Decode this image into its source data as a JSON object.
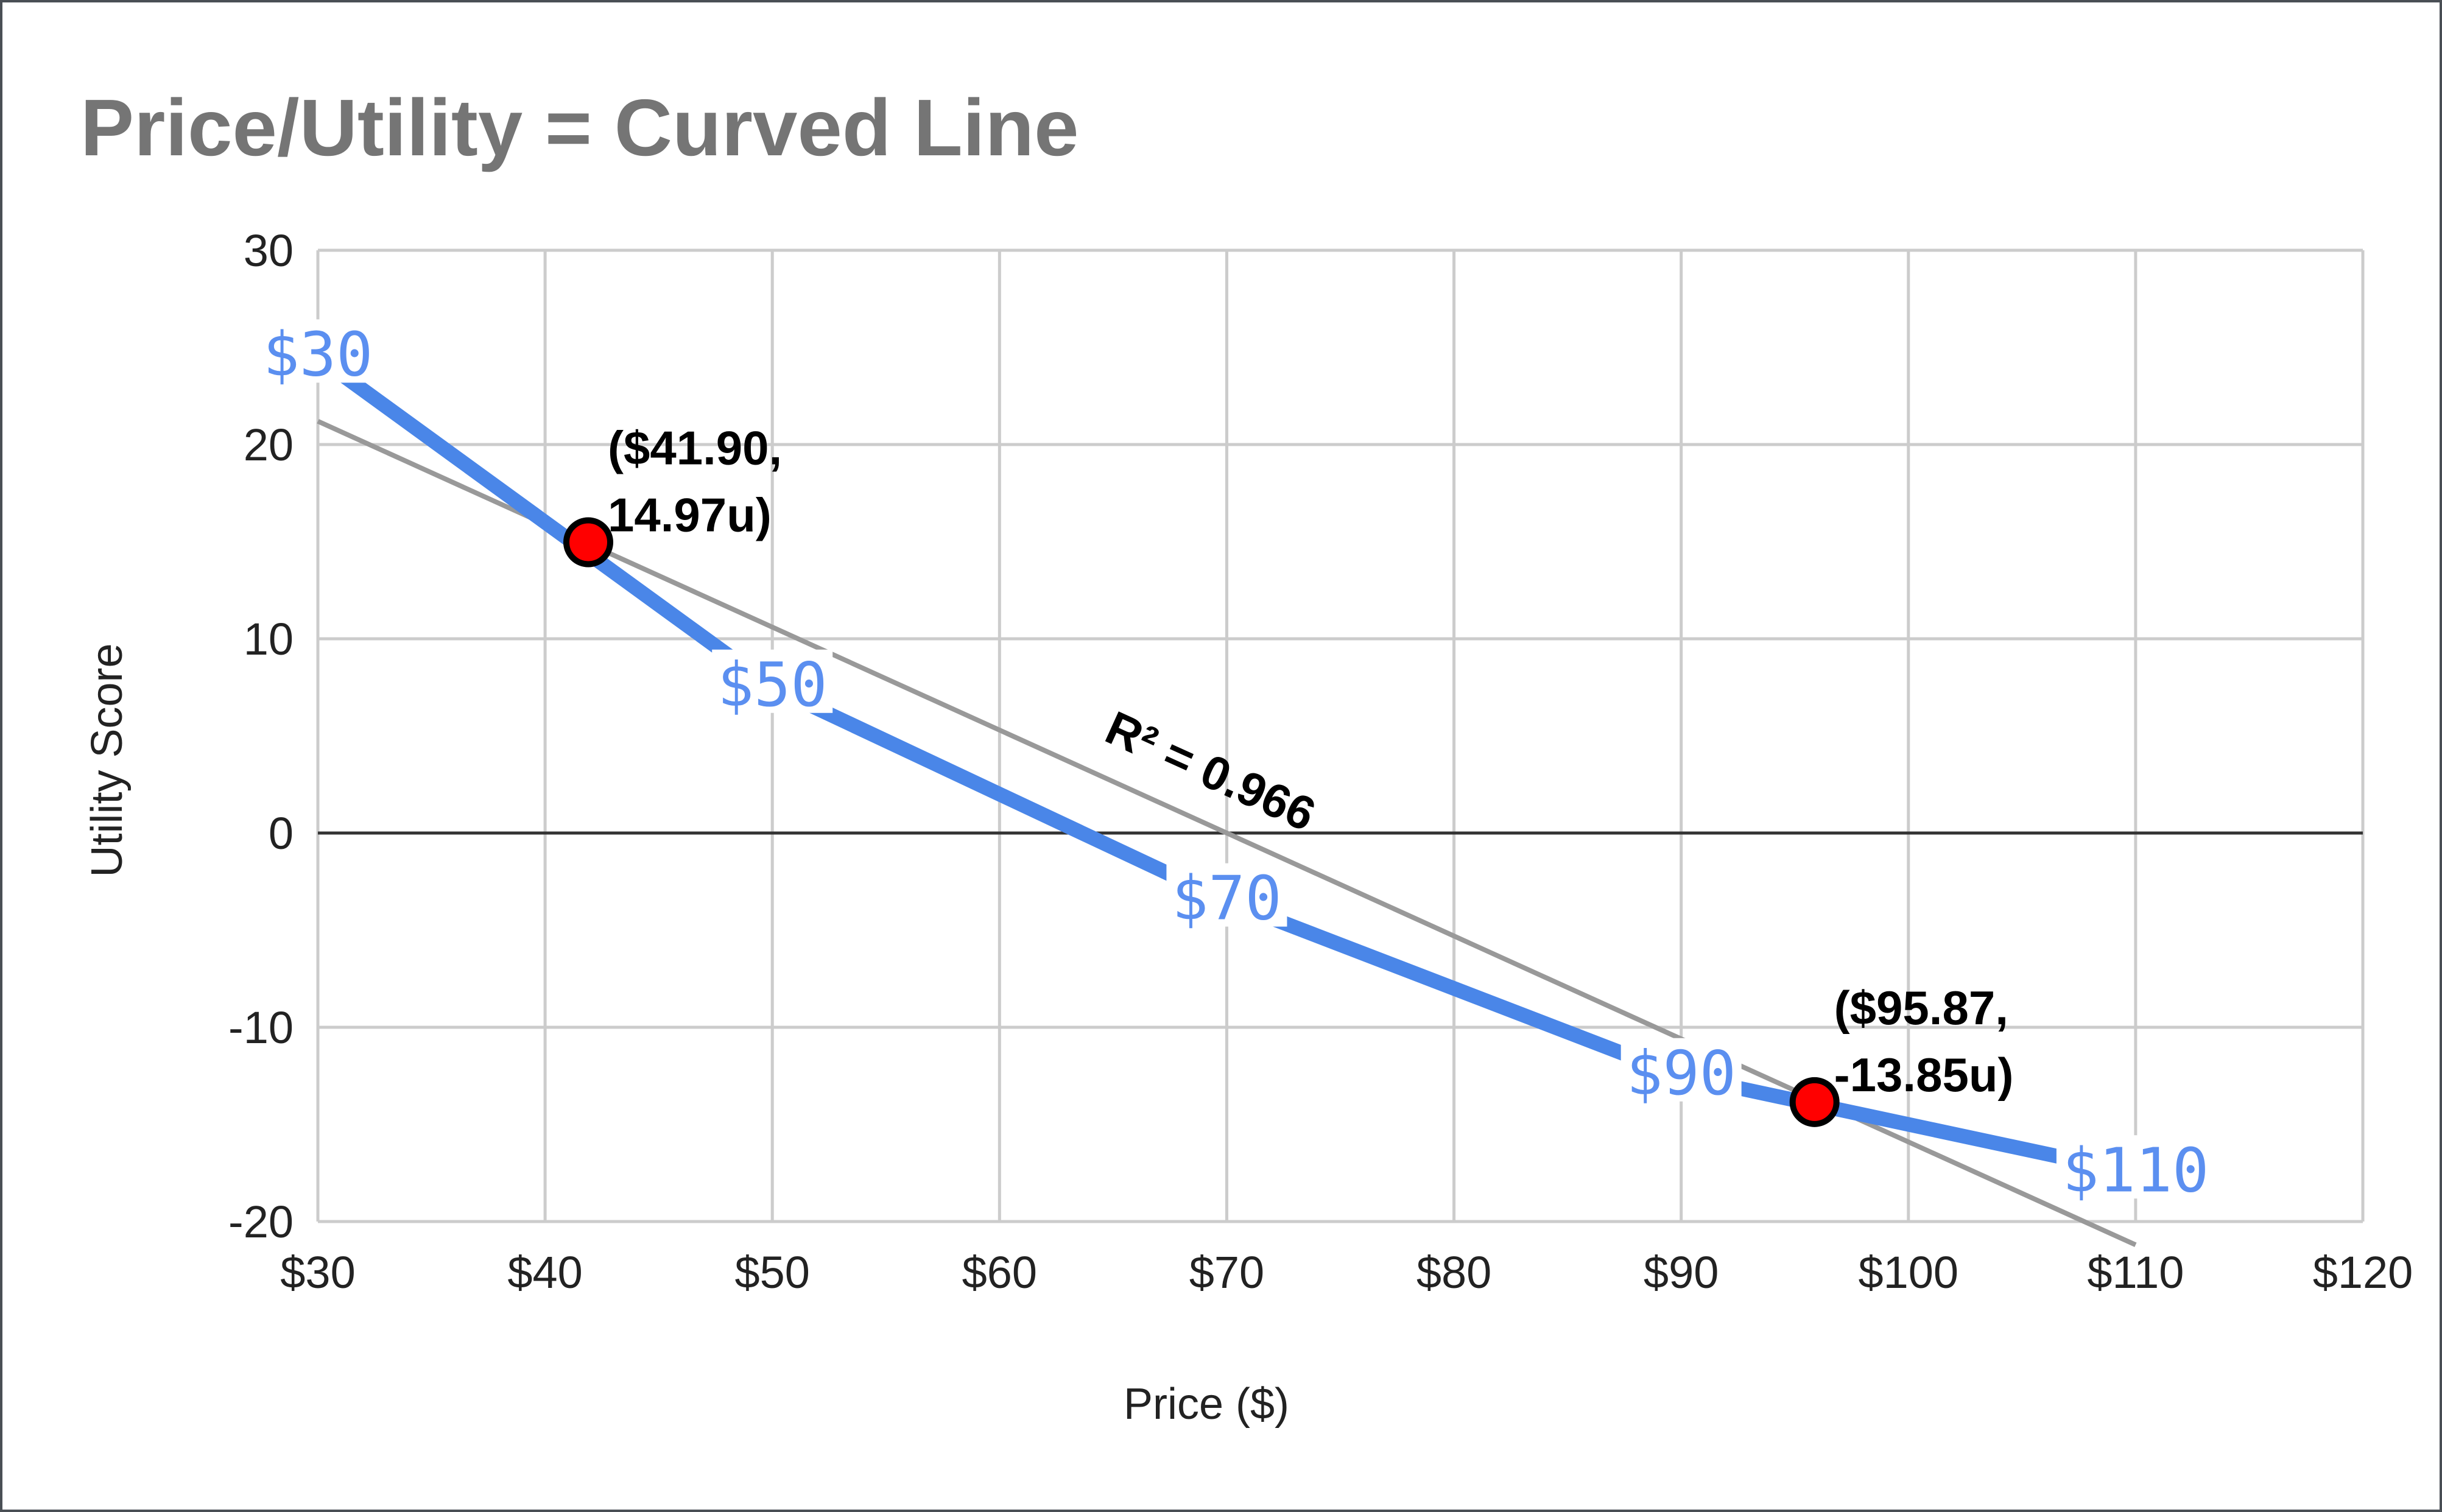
{
  "chart_data": {
    "type": "line",
    "title": "Price/Utility = Curved Line",
    "xlabel": "Price ($)",
    "ylabel": "Utility Score",
    "xlim": [
      30,
      120
    ],
    "ylim": [
      -20,
      30
    ],
    "x_ticks": [
      30,
      40,
      50,
      60,
      70,
      80,
      90,
      100,
      110,
      120
    ],
    "x_tick_labels": [
      "$30",
      "$40",
      "$50",
      "$60",
      "$70",
      "$80",
      "$90",
      "$100",
      "$110",
      "$120"
    ],
    "y_ticks": [
      30,
      20,
      10,
      0,
      -10,
      -20
    ],
    "y_tick_labels": [
      "30",
      "20",
      "10",
      "0",
      "-10",
      "-20"
    ],
    "grid": true,
    "series": [
      {
        "color": "#4a86e8",
        "x": [
          30,
          50,
          70,
          90,
          110
        ],
        "y": [
          24.5,
          7.5,
          -3.5,
          -12.5,
          -17.5
        ],
        "point_labels": [
          "$30",
          "$50",
          "$70",
          "$90",
          "$110"
        ]
      }
    ],
    "trendline": {
      "color": "#999999",
      "x": [
        30,
        110
      ],
      "y": [
        21.2,
        -21.2
      ],
      "label": "R² = 0.966"
    },
    "highlight_points": [
      {
        "x": 41.9,
        "y": 14.97,
        "label_line1": "($41.90,",
        "label_line2": "14.97u)"
      },
      {
        "x": 95.87,
        "y": -13.85,
        "label_line1": "($95.87,",
        "label_line2": "-13.85u)"
      }
    ],
    "highlight_color": "#ff0000"
  }
}
